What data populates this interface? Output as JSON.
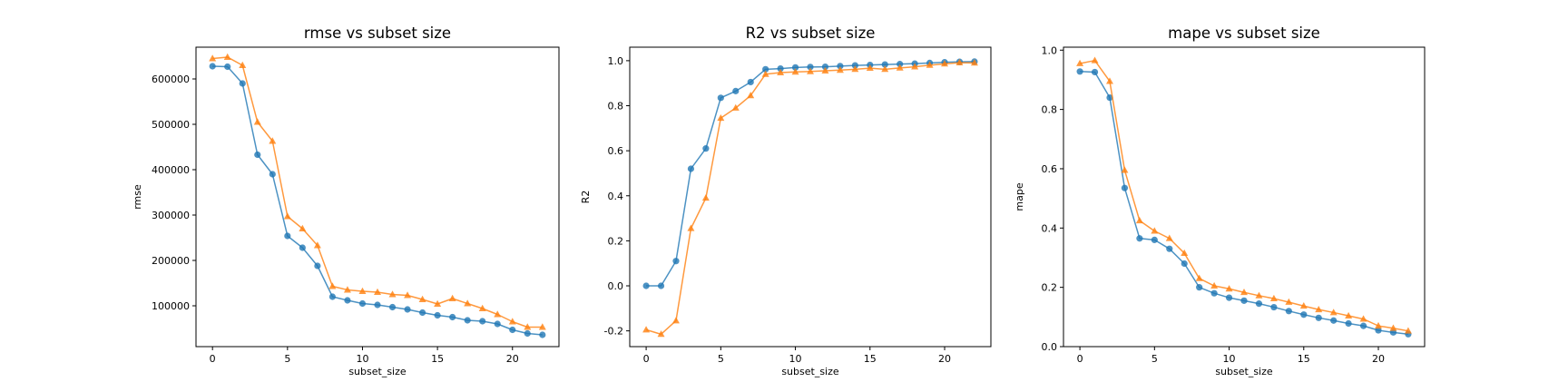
{
  "chart_data": [
    {
      "type": "line",
      "title": "rmse vs subset size",
      "xlabel": "subset_size",
      "ylabel": "rmse",
      "xlim": [
        -1.1,
        23.1
      ],
      "ylim": [
        10000,
        670000
      ],
      "xticks": [
        0,
        5,
        10,
        15,
        20
      ],
      "yticks": [
        100000,
        200000,
        300000,
        400000,
        500000,
        600000
      ],
      "grid": false,
      "x": [
        0,
        1,
        2,
        3,
        4,
        5,
        6,
        7,
        8,
        9,
        10,
        11,
        12,
        13,
        14,
        15,
        16,
        17,
        18,
        19,
        20,
        21,
        22
      ],
      "series": [
        {
          "color": "#1f77b4",
          "marker": "circle",
          "values": [
            628000,
            627000,
            590000,
            433000,
            390000,
            254000,
            228000,
            188000,
            120000,
            112000,
            105000,
            102000,
            97000,
            92000,
            85000,
            79000,
            75000,
            68000,
            66000,
            60000,
            47000,
            39000,
            36000
          ]
        },
        {
          "color": "#ff7f0e",
          "marker": "triangle",
          "values": [
            645000,
            648000,
            630000,
            505000,
            463000,
            297000,
            270000,
            233000,
            143000,
            135000,
            132000,
            130000,
            125000,
            123000,
            114000,
            104000,
            116000,
            105000,
            94000,
            81000,
            65000,
            53000,
            53000
          ]
        }
      ]
    },
    {
      "type": "line",
      "title": "R2 vs subset size",
      "xlabel": "subset_size",
      "ylabel": "R2",
      "xlim": [
        -1.1,
        23.1
      ],
      "ylim": [
        -0.27,
        1.06
      ],
      "xticks": [
        0,
        5,
        10,
        15,
        20
      ],
      "yticks": [
        -0.2,
        0.0,
        0.2,
        0.4,
        0.6,
        0.8,
        1.0
      ],
      "grid": false,
      "x": [
        0,
        1,
        2,
        3,
        4,
        5,
        6,
        7,
        8,
        9,
        10,
        11,
        12,
        13,
        14,
        15,
        16,
        17,
        18,
        19,
        20,
        21,
        22
      ],
      "series": [
        {
          "color": "#1f77b4",
          "marker": "circle",
          "values": [
            0.0,
            0.0,
            0.11,
            0.52,
            0.61,
            0.835,
            0.865,
            0.905,
            0.962,
            0.965,
            0.97,
            0.972,
            0.973,
            0.976,
            0.979,
            0.981,
            0.983,
            0.985,
            0.987,
            0.99,
            0.993,
            0.995,
            0.996
          ]
        },
        {
          "color": "#ff7f0e",
          "marker": "triangle",
          "values": [
            -0.195,
            -0.215,
            -0.155,
            0.255,
            0.39,
            0.745,
            0.79,
            0.845,
            0.94,
            0.947,
            0.95,
            0.952,
            0.955,
            0.958,
            0.962,
            0.967,
            0.962,
            0.968,
            0.973,
            0.98,
            0.986,
            0.991,
            0.99
          ]
        }
      ]
    },
    {
      "type": "line",
      "title": "mape vs subset size",
      "xlabel": "subset_size",
      "ylabel": "mape",
      "xlim": [
        -1.1,
        23.1
      ],
      "ylim": [
        0.0,
        1.01
      ],
      "xticks": [
        0,
        5,
        10,
        15,
        20
      ],
      "yticks": [
        0.0,
        0.2,
        0.4,
        0.6,
        0.8,
        1.0
      ],
      "grid": false,
      "x": [
        0,
        1,
        2,
        3,
        4,
        5,
        6,
        7,
        8,
        9,
        10,
        11,
        12,
        13,
        14,
        15,
        16,
        17,
        18,
        19,
        20,
        21,
        22
      ],
      "series": [
        {
          "color": "#1f77b4",
          "marker": "circle",
          "values": [
            0.928,
            0.926,
            0.84,
            0.535,
            0.365,
            0.36,
            0.33,
            0.28,
            0.2,
            0.18,
            0.165,
            0.155,
            0.145,
            0.133,
            0.12,
            0.108,
            0.097,
            0.088,
            0.078,
            0.07,
            0.055,
            0.048,
            0.042
          ]
        },
        {
          "color": "#ff7f0e",
          "marker": "triangle",
          "values": [
            0.955,
            0.965,
            0.895,
            0.595,
            0.425,
            0.39,
            0.365,
            0.315,
            0.23,
            0.205,
            0.195,
            0.183,
            0.172,
            0.162,
            0.15,
            0.137,
            0.125,
            0.115,
            0.104,
            0.093,
            0.07,
            0.062,
            0.053
          ]
        }
      ]
    }
  ]
}
